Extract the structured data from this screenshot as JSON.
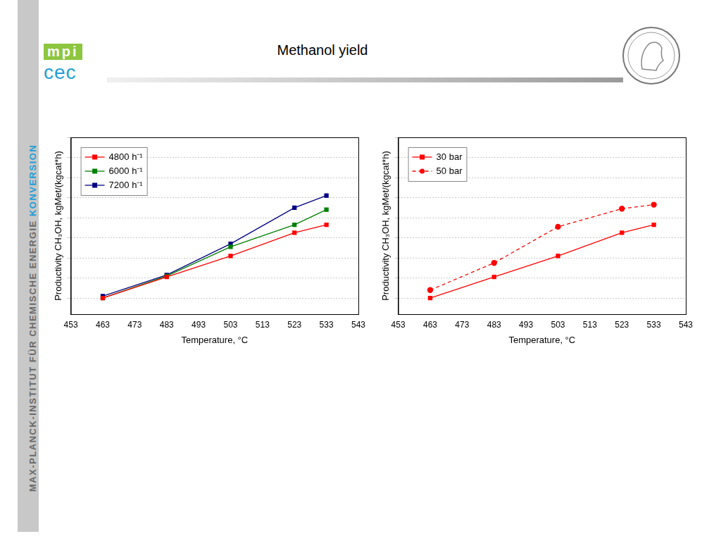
{
  "slide": {
    "title": "Methanol yield",
    "sidebar": [
      "MAX-PLANCK-INSTITUT FÜR CHEMISCHE ENERGIE",
      "KONVERSION"
    ],
    "logo": {
      "top": "mpi",
      "bottom": "cec"
    }
  },
  "chart_data": [
    {
      "type": "line",
      "x_label": "Temperature, °C",
      "y_label": "Productivity CH₃OH, kgMet/(kgcat*h)",
      "x": [
        463,
        483,
        503,
        523,
        533
      ],
      "series": [
        {
          "name": "4800 h⁻¹",
          "color": "#ff0000",
          "marker": "square",
          "line_style": "solid",
          "values": [
            0,
            1.05,
            2.1,
            3.25,
            3.65
          ]
        },
        {
          "name": "6000 h⁻¹",
          "color": "#008000",
          "marker": "square",
          "line_style": "solid",
          "values": [
            0,
            1.1,
            2.55,
            3.65,
            4.4
          ]
        },
        {
          "name": "7200 h⁻¹",
          "color": "#000080",
          "marker": "square",
          "line_style": "solid",
          "values": [
            0.1,
            1.15,
            2.7,
            4.5,
            5.1
          ]
        }
      ],
      "xlim": [
        453,
        543
      ],
      "xticks": [
        453,
        463,
        473,
        483,
        493,
        503,
        513,
        523,
        533,
        543
      ],
      "ylim": [
        -0.8,
        8
      ],
      "yticks": [
        0,
        1,
        2,
        3,
        4,
        5,
        6,
        7,
        8
      ],
      "grid": true,
      "legend": "top-left",
      "tick_labels": "x"
    },
    {
      "type": "line",
      "x_label": "Temperature, °C",
      "y_label": "Productivity CH₃OH, kgMet/(kgcat*h)",
      "x": [
        463,
        483,
        503,
        523,
        533
      ],
      "series": [
        {
          "name": "30 bar",
          "color": "#ff0000",
          "marker": "square",
          "line_style": "solid",
          "values": [
            0,
            1.05,
            2.1,
            3.25,
            3.65
          ]
        },
        {
          "name": "50 bar",
          "color": "#ff0000",
          "marker": "circle",
          "line_style": "dashed",
          "values": [
            0.4,
            1.75,
            3.55,
            4.45,
            4.65
          ]
        }
      ],
      "xlim": [
        453,
        543
      ],
      "xticks": [
        453,
        463,
        473,
        483,
        493,
        503,
        513,
        523,
        533,
        543
      ],
      "ylim": [
        -0.8,
        8
      ],
      "yticks": [
        0,
        1,
        2,
        3,
        4,
        5,
        6,
        7,
        8
      ],
      "grid": true,
      "legend": "top-left",
      "tick_labels": "x"
    }
  ]
}
